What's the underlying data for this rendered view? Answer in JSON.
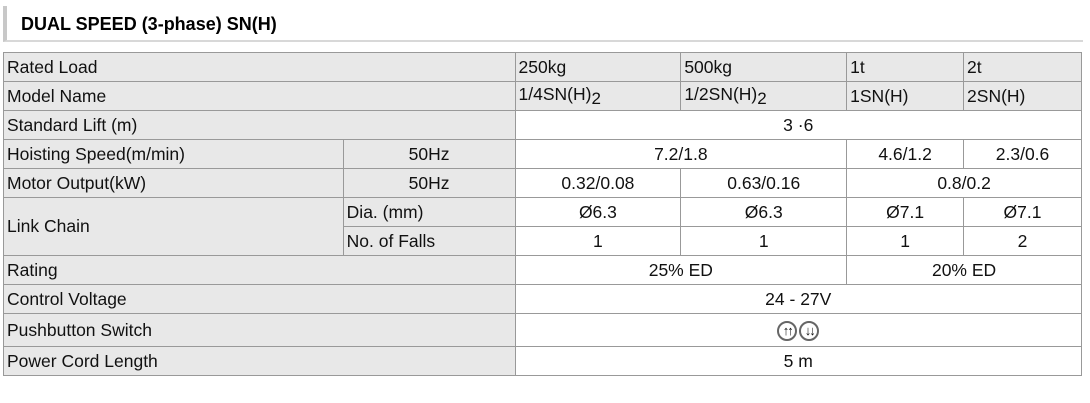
{
  "title": "DUAL SPEED (3-phase) SN(H)",
  "rows": {
    "rated_load": {
      "label": "Rated Load",
      "values": [
        "250kg",
        "500kg",
        "1t",
        "2t"
      ]
    },
    "model_name": {
      "label": "Model Name",
      "values": [
        "1/4SN(H)",
        "1/2SN(H)",
        "1SN(H)",
        "2SN(H)"
      ],
      "subscripts": [
        "2",
        "2"
      ]
    },
    "standard_lift": {
      "label": "Standard Lift (m)",
      "value": "3 ·6"
    },
    "hoisting_speed": {
      "label": "Hoisting Speed(m/min)",
      "sub": "50Hz",
      "values": [
        "7.2/1.8",
        "4.6/1.2",
        "2.3/0.6"
      ]
    },
    "motor_output": {
      "label": "Motor Output(kW)",
      "sub": "50Hz",
      "values": [
        "0.32/0.08",
        "0.63/0.16",
        "0.8/0.2"
      ]
    },
    "link_chain": {
      "label": "Link Chain",
      "dia_label": "Dia. (mm)",
      "dia": [
        "Ø6.3",
        "Ø6.3",
        "Ø7.1",
        "Ø7.1"
      ],
      "falls_label": "No. of Falls",
      "falls": [
        "1",
        "1",
        "1",
        "2"
      ]
    },
    "rating": {
      "label": "Rating",
      "values": [
        "25% ED",
        "20% ED"
      ]
    },
    "control_voltage": {
      "label": "Control Voltage",
      "value": "24 - 27V"
    },
    "pushbutton": {
      "label": "Pushbutton Switch",
      "icons": [
        "up-arrows-icon",
        "down-arrows-icon"
      ],
      "up": "↑↑",
      "down": "↓↓"
    },
    "power_cord": {
      "label": "Power Cord Length",
      "value": "5 m"
    }
  }
}
